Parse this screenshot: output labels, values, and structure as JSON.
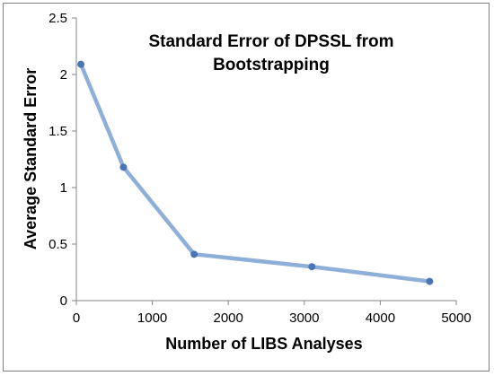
{
  "chart_data": {
    "type": "scatter",
    "title_lines": [
      "Standard Error of DPSSL from",
      "Bootstrapping"
    ],
    "xlabel": "Number of LIBS Analyses",
    "ylabel": "Average Standard Error",
    "xlim": [
      0,
      5000
    ],
    "ylim": [
      0,
      2.5
    ],
    "x_ticks": [
      "0",
      "1000",
      "2000",
      "3000",
      "4000",
      "5000"
    ],
    "y_ticks": [
      "0",
      "0.5",
      "1",
      "1.5",
      "2",
      "2.5"
    ],
    "grid": false,
    "legend": "none",
    "series": [
      {
        "x": [
          60,
          620,
          1550,
          3100,
          4650
        ],
        "y": [
          2.09,
          1.18,
          0.41,
          0.3,
          0.17
        ],
        "line_color": "#8EAFD8",
        "marker_color": "#4A77B4"
      }
    ]
  }
}
